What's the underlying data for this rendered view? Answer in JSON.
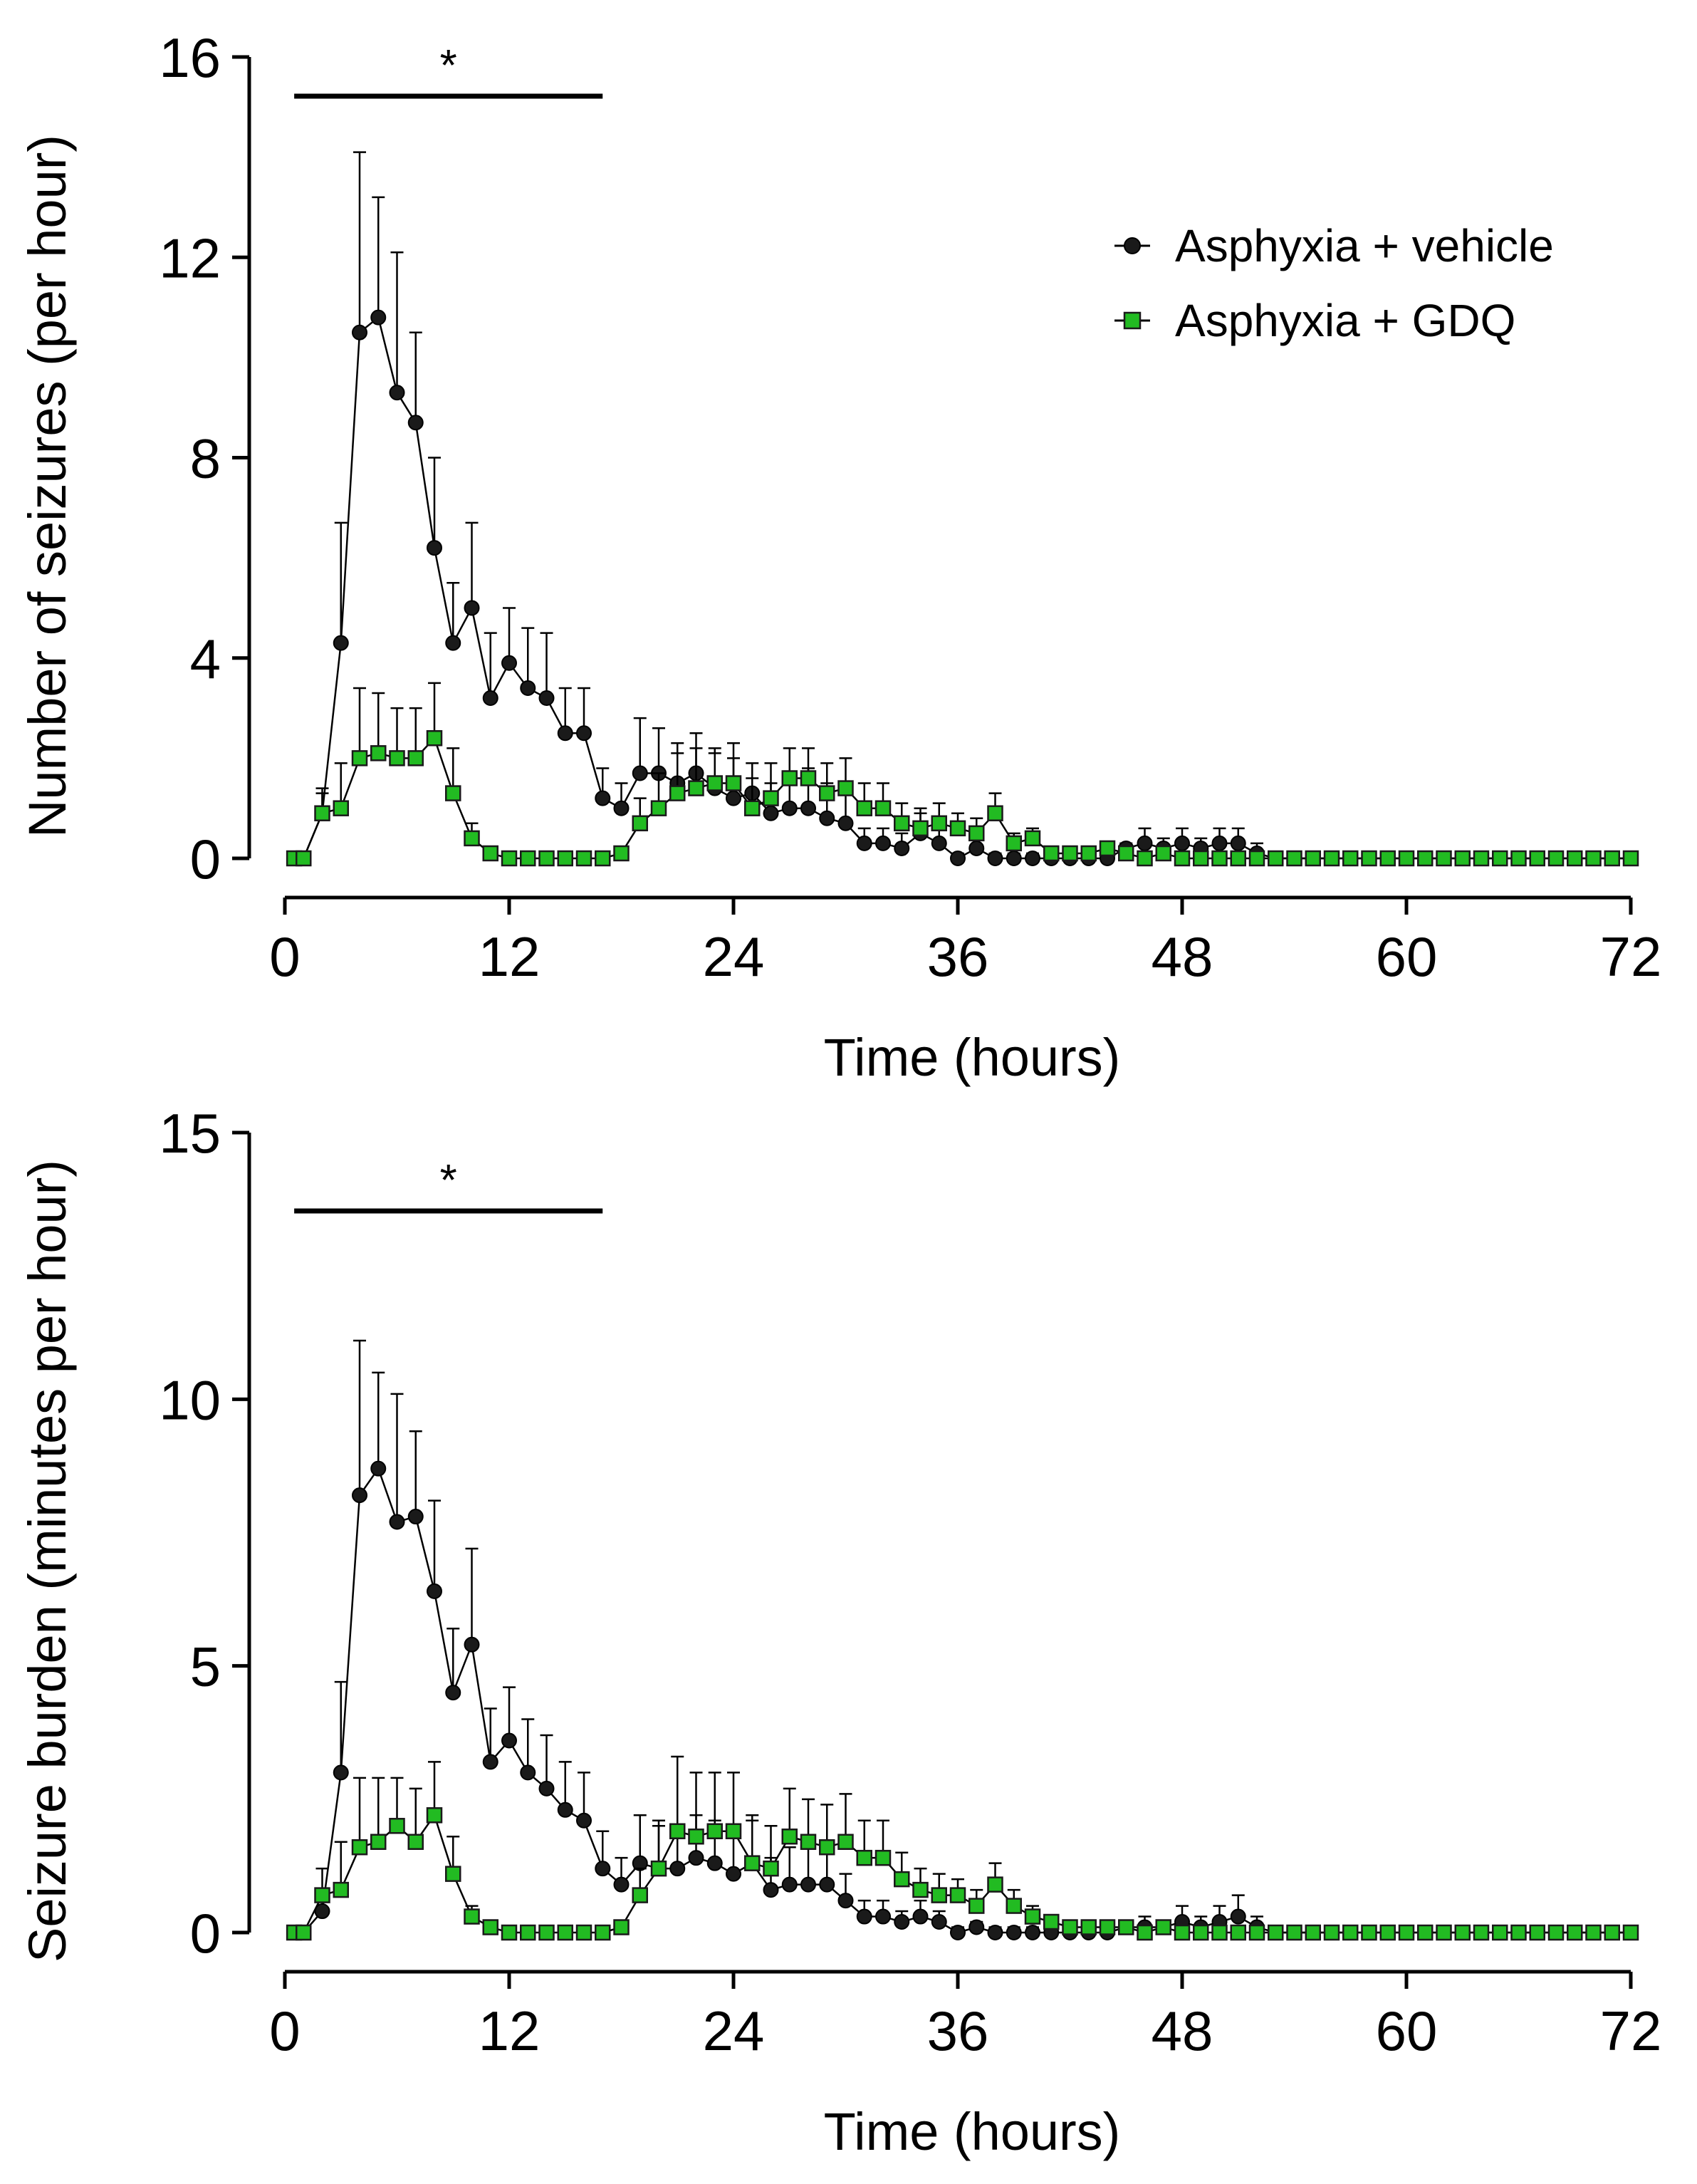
{
  "series_styles": [
    {
      "name": "Asphyxia + vehicle",
      "marker": "circle",
      "color": "#1a1a1a",
      "stroke": "#000000"
    },
    {
      "name": "Asphyxia + GDQ",
      "marker": "square",
      "color": "#22bb22",
      "stroke": "#1a1a1a"
    }
  ],
  "chart_data": [
    {
      "type": "line",
      "ylabel": "Number of seizures (per hour)",
      "xlabel": "Time (hours)",
      "xlim": [
        0,
        72
      ],
      "ylim": [
        0,
        16
      ],
      "x_ticks": [
        "0",
        "12",
        "24",
        "36",
        "48",
        "60",
        "72"
      ],
      "y_ticks": [
        "0",
        "4",
        "8",
        "12",
        "16"
      ],
      "significance": {
        "label": "*",
        "x_range": [
          0.5,
          17
        ]
      },
      "legend": {
        "position": "top-right",
        "entries": [
          "Asphyxia + vehicle",
          "Asphyxia + GDQ"
        ]
      },
      "x": [
        0.5,
        1,
        2,
        3,
        4,
        5,
        6,
        7,
        8,
        9,
        10,
        11,
        12,
        13,
        14,
        15,
        16,
        17,
        18,
        19,
        20,
        21,
        22,
        23,
        24,
        25,
        26,
        27,
        28,
        29,
        30,
        31,
        32,
        33,
        34,
        35,
        36,
        37,
        38,
        39,
        40,
        41,
        42,
        43,
        44,
        45,
        46,
        47,
        48,
        49,
        50,
        51,
        52,
        53,
        54,
        55,
        56,
        57,
        58,
        59,
        60,
        61,
        62,
        63,
        64,
        65,
        66,
        67,
        68,
        69,
        70,
        71,
        72
      ],
      "series": [
        {
          "name": "Asphyxia + vehicle",
          "values": [
            0,
            0,
            0.9,
            4.3,
            10.5,
            10.8,
            9.3,
            8.7,
            6.2,
            4.3,
            5.0,
            3.2,
            3.9,
            3.4,
            3.2,
            2.5,
            2.5,
            1.2,
            1.0,
            1.7,
            1.7,
            1.5,
            1.7,
            1.4,
            1.2,
            1.3,
            0.9,
            1.0,
            1.0,
            0.8,
            0.7,
            0.3,
            0.3,
            0.2,
            0.5,
            0.3,
            0,
            0.2,
            0,
            0,
            0,
            0,
            0,
            0,
            0,
            0.2,
            0.3,
            0.2,
            0.3,
            0.2,
            0.3,
            0.3,
            0.1,
            0,
            0,
            0,
            0,
            0,
            0,
            0,
            0,
            0,
            0,
            0,
            0,
            0,
            0,
            0,
            0,
            0,
            0,
            0,
            0
          ],
          "errors": [
            0,
            0,
            0.5,
            2.4,
            3.6,
            2.4,
            2.8,
            1.8,
            1.8,
            1.2,
            1.7,
            1.3,
            1.1,
            1.2,
            1.3,
            0.9,
            0.9,
            0.6,
            0.5,
            1.1,
            0.9,
            0.8,
            0.8,
            0.7,
            0.8,
            0.6,
            0.6,
            0.7,
            0.8,
            0.7,
            0.6,
            0.3,
            0.3,
            0.3,
            0.4,
            0.3,
            0.1,
            0.2,
            0.1,
            0.1,
            0.1,
            0.1,
            0.1,
            0.1,
            0.1,
            0.1,
            0.3,
            0.2,
            0.3,
            0.2,
            0.3,
            0.3,
            0.2,
            0,
            0,
            0,
            0,
            0,
            0,
            0,
            0,
            0,
            0,
            0,
            0,
            0,
            0,
            0,
            0,
            0,
            0,
            0,
            0
          ]
        },
        {
          "name": "Asphyxia + GDQ",
          "values": [
            0,
            0,
            0.9,
            1.0,
            2.0,
            2.1,
            2.0,
            2.0,
            2.4,
            1.3,
            0.4,
            0.1,
            0,
            0,
            0,
            0,
            0,
            0,
            0.1,
            0.7,
            1.0,
            1.3,
            1.4,
            1.5,
            1.5,
            1.0,
            1.2,
            1.6,
            1.6,
            1.3,
            1.4,
            1.0,
            1.0,
            0.7,
            0.6,
            0.7,
            0.6,
            0.5,
            0.9,
            0.3,
            0.4,
            0.1,
            0.1,
            0.1,
            0.2,
            0.1,
            0,
            0.1,
            0,
            0,
            0,
            0,
            0,
            0,
            0,
            0,
            0,
            0,
            0,
            0,
            0,
            0,
            0,
            0,
            0,
            0,
            0,
            0,
            0,
            0,
            0,
            0,
            0
          ],
          "errors": [
            0,
            0,
            0.4,
            0.9,
            1.4,
            1.2,
            1.0,
            1.0,
            1.1,
            0.9,
            0.3,
            0.1,
            0,
            0,
            0,
            0,
            0,
            0,
            0.1,
            0.5,
            0.7,
            0.8,
            0.8,
            0.7,
            0.8,
            0.6,
            0.7,
            0.6,
            0.6,
            0.6,
            0.6,
            0.5,
            0.5,
            0.4,
            0.4,
            0.4,
            0.3,
            0.3,
            0.4,
            0.2,
            0.2,
            0.1,
            0.1,
            0.1,
            0.1,
            0.1,
            0,
            0.1,
            0,
            0,
            0,
            0,
            0,
            0,
            0,
            0,
            0,
            0,
            0,
            0,
            0,
            0,
            0,
            0,
            0,
            0,
            0,
            0,
            0,
            0,
            0,
            0,
            0
          ]
        }
      ]
    },
    {
      "type": "line",
      "ylabel": "Seizure burden (minutes per hour)",
      "xlabel": "Time (hours)",
      "xlim": [
        0,
        72
      ],
      "ylim": [
        0,
        15
      ],
      "x_ticks": [
        "0",
        "12",
        "24",
        "36",
        "48",
        "60",
        "72"
      ],
      "y_ticks": [
        "0",
        "5",
        "10",
        "15"
      ],
      "significance": {
        "label": "*",
        "x_range": [
          0.5,
          17
        ]
      },
      "legend": null,
      "x": [
        0.5,
        1,
        2,
        3,
        4,
        5,
        6,
        7,
        8,
        9,
        10,
        11,
        12,
        13,
        14,
        15,
        16,
        17,
        18,
        19,
        20,
        21,
        22,
        23,
        24,
        25,
        26,
        27,
        28,
        29,
        30,
        31,
        32,
        33,
        34,
        35,
        36,
        37,
        38,
        39,
        40,
        41,
        42,
        43,
        44,
        45,
        46,
        47,
        48,
        49,
        50,
        51,
        52,
        53,
        54,
        55,
        56,
        57,
        58,
        59,
        60,
        61,
        62,
        63,
        64,
        65,
        66,
        67,
        68,
        69,
        70,
        71,
        72
      ],
      "series": [
        {
          "name": "Asphyxia + vehicle",
          "values": [
            0,
            0,
            0.4,
            3.0,
            8.2,
            8.7,
            7.7,
            7.8,
            6.4,
            4.5,
            5.4,
            3.2,
            3.6,
            3.0,
            2.7,
            2.3,
            2.1,
            1.2,
            0.9,
            1.3,
            1.2,
            1.2,
            1.4,
            1.3,
            1.1,
            1.3,
            0.8,
            0.9,
            0.9,
            0.9,
            0.6,
            0.3,
            0.3,
            0.2,
            0.3,
            0.2,
            0,
            0.1,
            0,
            0,
            0,
            0,
            0,
            0,
            0,
            0.1,
            0.1,
            0.1,
            0.2,
            0.1,
            0.2,
            0.3,
            0.1,
            0,
            0,
            0,
            0,
            0,
            0,
            0,
            0,
            0,
            0,
            0,
            0,
            0,
            0,
            0,
            0,
            0,
            0,
            0,
            0
          ],
          "errors": [
            0,
            0,
            0.4,
            1.7,
            2.9,
            1.8,
            2.4,
            1.6,
            1.7,
            1.2,
            1.8,
            1.0,
            1.0,
            1.0,
            1.0,
            0.9,
            0.9,
            0.7,
            0.5,
            0.9,
            0.8,
            0.8,
            0.8,
            0.8,
            0.7,
            0.8,
            0.6,
            0.7,
            0.7,
            0.7,
            0.5,
            0.3,
            0.3,
            0.2,
            0.3,
            0.2,
            0.1,
            0.1,
            0.1,
            0.1,
            0.1,
            0.1,
            0.1,
            0.1,
            0.1,
            0.1,
            0.2,
            0.1,
            0.3,
            0.2,
            0.3,
            0.4,
            0.2,
            0,
            0,
            0,
            0,
            0,
            0,
            0,
            0,
            0,
            0,
            0,
            0,
            0,
            0,
            0,
            0,
            0,
            0,
            0,
            0
          ]
        },
        {
          "name": "Asphyxia + GDQ",
          "values": [
            0,
            0,
            0.7,
            0.8,
            1.6,
            1.7,
            2.0,
            1.7,
            2.2,
            1.1,
            0.3,
            0.1,
            0,
            0,
            0,
            0,
            0,
            0,
            0.1,
            0.7,
            1.2,
            1.9,
            1.8,
            1.9,
            1.9,
            1.3,
            1.2,
            1.8,
            1.7,
            1.6,
            1.7,
            1.4,
            1.4,
            1.0,
            0.8,
            0.7,
            0.7,
            0.5,
            0.9,
            0.5,
            0.3,
            0.2,
            0.1,
            0.1,
            0.1,
            0.1,
            0,
            0.1,
            0,
            0,
            0,
            0,
            0,
            0,
            0,
            0,
            0,
            0,
            0,
            0,
            0,
            0,
            0,
            0,
            0,
            0,
            0,
            0,
            0,
            0,
            0,
            0,
            0
          ],
          "errors": [
            0,
            0,
            0.5,
            0.9,
            1.3,
            1.2,
            0.9,
            1.0,
            1.0,
            0.7,
            0.2,
            0.1,
            0,
            0,
            0,
            0,
            0,
            0,
            0.1,
            0.5,
            0.9,
            1.4,
            1.2,
            1.1,
            1.1,
            0.9,
            0.8,
            0.9,
            0.8,
            0.8,
            0.9,
            0.7,
            0.7,
            0.5,
            0.4,
            0.4,
            0.3,
            0.3,
            0.4,
            0.3,
            0.2,
            0.1,
            0.1,
            0.1,
            0.1,
            0.1,
            0,
            0.1,
            0,
            0,
            0,
            0,
            0,
            0,
            0,
            0,
            0,
            0,
            0,
            0,
            0,
            0,
            0,
            0,
            0,
            0,
            0,
            0,
            0,
            0,
            0,
            0,
            0
          ]
        }
      ]
    }
  ]
}
